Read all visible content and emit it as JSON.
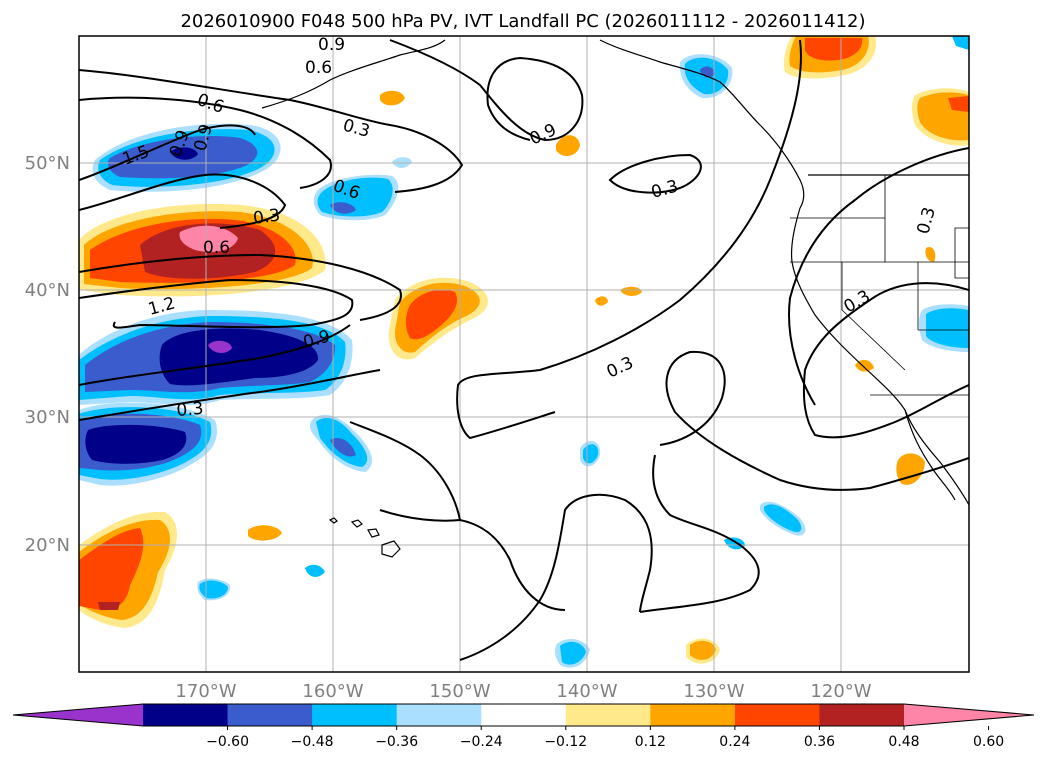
{
  "title": "2026010900 F048 500 hPa PV, IVT Landfall PC (2026011112 - 2026011412)",
  "map": {
    "lon_labels": [
      "170°W",
      "160°W",
      "150°W",
      "140°W",
      "130°W",
      "120°W"
    ],
    "lat_labels": [
      "50°N",
      "40°N",
      "30°N",
      "20°N"
    ],
    "contour_labels": [
      "0.9",
      "0.6",
      "0.6",
      "0.9",
      "1.5",
      "0.9",
      "0.3",
      "0.6",
      "0.6",
      "1.2",
      "0.9",
      "0.3",
      "0.3",
      "0.9",
      "0.3",
      "0.3",
      "0.3",
      "0.3"
    ]
  },
  "colorbar": {
    "ticks": [
      "−0.60",
      "−0.48",
      "−0.36",
      "−0.24",
      "−0.12",
      "0.12",
      "0.24",
      "0.36",
      "0.48",
      "0.60"
    ],
    "colors": [
      "#9933cc",
      "#000088",
      "#3a5ccc",
      "#00bfff",
      "#aadfff",
      "#ffffff",
      "#ffe98a",
      "#ffa500",
      "#ff4500",
      "#b22222",
      "#ff85a8"
    ]
  },
  "colors": {
    "grid": "#b0b0b0",
    "coast": "#000000",
    "contour": "#000000",
    "tick_label": "#808080"
  }
}
